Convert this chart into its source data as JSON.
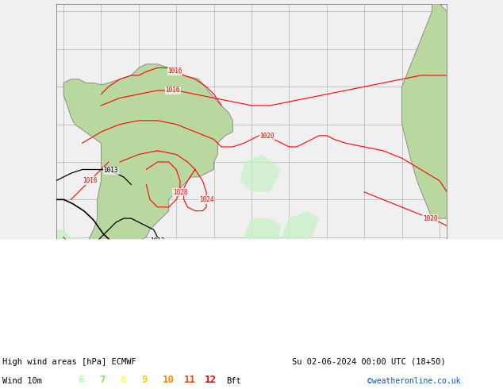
{
  "title_line1": "High wind areas [hPa] ECMWF",
  "title_line2": "Su 02-06-2024 00:00 UTC (18+50)",
  "legend_label": "Wind 10m",
  "legend_values": [
    "6",
    "7",
    "8",
    "9",
    "10",
    "11",
    "12"
  ],
  "legend_colors": [
    "#aaffaa",
    "#77ee55",
    "#ffff44",
    "#ffcc00",
    "#ff8800",
    "#ff4400",
    "#ff0000"
  ],
  "legend_suffix": "Bft",
  "copyright": "©weatheronline.co.uk",
  "ocean_color": "#f0f0f0",
  "land_color": "#b8d8a0",
  "land_edge": "#808080",
  "grid_color": "#999999",
  "wind6_color": "#c8f0c8",
  "wind8_color": "#90e890",
  "wind10_color": "#40d840",
  "wind12_color": "#00b800",
  "figsize": [
    6.34,
    4.9
  ],
  "dpi": 100
}
